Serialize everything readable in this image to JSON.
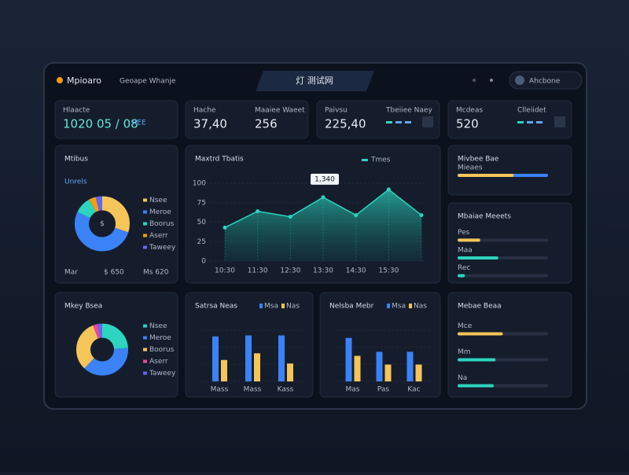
{
  "header": {
    "logo": "Mpioaro",
    "nav": "Geoape Whanje",
    "title": "灯 测试网",
    "user": "Ahcbone"
  },
  "kpis": [
    {
      "label": "Hlaacte",
      "value": "1020 05 / 08",
      "tag": "REE"
    },
    {
      "label": "Hache",
      "value": "37,40",
      "label2": "Maaiee Waeet",
      "value2": "256"
    },
    {
      "label": "Paivsu",
      "value": "225,40",
      "label2": "Tbeiiee Naey"
    },
    {
      "label": "Mcdeas",
      "value": "520",
      "label2": "Clleiidet"
    }
  ],
  "chart_data": [
    {
      "type": "donut",
      "title": "Mtibus",
      "subtitle": "Unrels",
      "center": "$",
      "categories": [
        "Nsee",
        "Meroe",
        "Boorus",
        "Aserr",
        "Taweey"
      ],
      "values": [
        30,
        52,
        10,
        4,
        4
      ],
      "colors": [
        "#f5c55a",
        "#3b82f6",
        "#2dd4bf",
        "#f59e0b",
        "#6366f1"
      ],
      "footer": [
        "Mar",
        "$ 650",
        "Ms 620"
      ]
    },
    {
      "type": "line",
      "title": "Maxtrd Tbatis",
      "annotation": "1,340",
      "x": [
        "10:30",
        "11:30",
        "12:30",
        "13:30",
        "14:30",
        "15:30",
        null
      ],
      "series": [
        {
          "name": "Tmes",
          "color": "#2dd4bf",
          "values": [
            43,
            64,
            57,
            82,
            59,
            92,
            59
          ]
        }
      ],
      "ylim": [
        0,
        100
      ],
      "yticks": [
        0,
        25,
        50,
        75,
        100
      ]
    },
    {
      "type": "donut",
      "title": "Mkey Bsea",
      "categories": [
        "Nsee",
        "Meroe",
        "Boorus",
        "Aserr",
        "Taweey"
      ],
      "values": [
        24,
        38,
        32,
        3,
        3
      ],
      "colors": [
        "#2dd4bf",
        "#3b82f6",
        "#f5c55a",
        "#ec4899",
        "#6366f1"
      ]
    },
    {
      "type": "bar",
      "title": "Satrsa Neas",
      "categories": [
        "Mass",
        "Mass",
        "Kass"
      ],
      "series": [
        {
          "name": "Msa",
          "color": "#3b82f6",
          "values": [
            88,
            90,
            90
          ]
        },
        {
          "name": "Nas",
          "color": "#f5c55a",
          "values": [
            42,
            55,
            35
          ]
        }
      ],
      "ylim": [
        0,
        100
      ]
    },
    {
      "type": "bar",
      "title": "Nelsba Mebr",
      "categories": [
        "Mas",
        "Pas",
        "Kac"
      ],
      "series": [
        {
          "name": "Msa",
          "color": "#3b82f6",
          "values": [
            85,
            58,
            58
          ]
        },
        {
          "name": "Nas",
          "color": "#f5c55a",
          "values": [
            50,
            33,
            33
          ]
        }
      ],
      "ylim": [
        0,
        100
      ]
    },
    {
      "type": "progress",
      "title": "Mivbee Bae",
      "categories": [
        "Mieaes"
      ],
      "values": [
        62
      ],
      "color": "#f5c55a",
      "track": "#3b82f6"
    },
    {
      "type": "progress",
      "title": "Mbaiae Meeets",
      "categories": [
        "Pes",
        "Maa",
        "Rec"
      ],
      "values": [
        25,
        45,
        8
      ],
      "color": "#f5c55a",
      "color2": "#2dd4bf",
      "track": "#263042"
    },
    {
      "type": "progress",
      "title": "Mebae Beaa",
      "categories": [
        "Mce",
        "Mm",
        "Na"
      ],
      "values": [
        50,
        42,
        40
      ],
      "color": "#f5c55a",
      "color2": "#2dd4bf",
      "track": "#263042"
    }
  ]
}
